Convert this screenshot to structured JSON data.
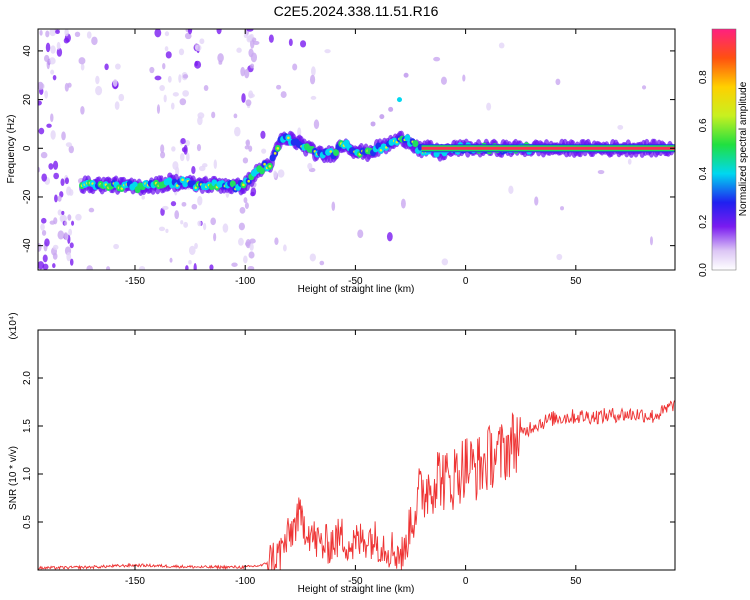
{
  "title": "C2E5.2024.338.11.51.R16",
  "chart_data": [
    {
      "type": "heatmap",
      "panel": "spectrogram",
      "xlabel": "Height of straight line (km)",
      "ylabel": "Frequency (Hz)",
      "xlim": [
        -194,
        95
      ],
      "ylim": [
        -50,
        49
      ],
      "xticks": [
        "-150",
        "-100",
        "-50",
        "0",
        "50"
      ],
      "yticks": [
        "40",
        "20",
        "0",
        "-20",
        "-40"
      ],
      "ridge_x": [
        -174,
        -160,
        -150,
        -140,
        -130,
        -122,
        -115,
        -108,
        -104,
        -100,
        -96,
        -92,
        -88,
        -84,
        -80,
        -75,
        -70,
        -65,
        -60,
        -55,
        -50,
        -45,
        -40,
        -36,
        -32,
        -28,
        -24,
        -20,
        -16,
        -12,
        -8,
        -4,
        0,
        10,
        20,
        40,
        60,
        80,
        94
      ],
      "ridge_y": [
        -15,
        -15,
        -16,
        -15,
        -14,
        -15,
        -15,
        -15,
        -16,
        -15,
        -11,
        -8,
        -6,
        3,
        4,
        2,
        -1,
        -3,
        -2,
        2,
        -1,
        -2,
        0,
        1,
        3,
        4,
        2,
        -1,
        0,
        -2,
        -1,
        0,
        0,
        0,
        0,
        0,
        0,
        0,
        0
      ],
      "branch_x": [
        -42,
        -38,
        -34,
        -30,
        -27
      ],
      "branch_y": [
        10,
        13,
        16,
        20,
        30
      ],
      "colorbar": {
        "label": "Normalized spectral amplitude",
        "ticks": [
          "0.0",
          "0.2",
          "0.4",
          "0.6",
          "0.8"
        ],
        "min": 0,
        "max": 1
      }
    },
    {
      "type": "line",
      "panel": "snr",
      "xlabel": "Height of straight line (km)",
      "ylabel": "SNR (10 * v/v)",
      "scale_label": "(x10⁴)",
      "xlim": [
        -194,
        95
      ],
      "ylim": [
        0,
        2.5
      ],
      "xticks": [
        "-150",
        "-100",
        "-50",
        "0",
        "50"
      ],
      "yticks": [
        "0.5",
        "1.0",
        "1.5",
        "2.0"
      ],
      "color": "#ee3333",
      "x": [
        -194,
        -170,
        -150,
        -120,
        -100,
        -92,
        -85,
        -80,
        -76,
        -72,
        -68,
        -64,
        -60,
        -56,
        -52,
        -48,
        -44,
        -40,
        -36,
        -32,
        -28,
        -24,
        -20,
        -16,
        -12,
        -8,
        -4,
        0,
        4,
        8,
        12,
        16,
        20,
        25,
        30,
        40,
        50,
        60,
        70,
        80,
        85,
        90,
        93,
        95
      ],
      "y": [
        0.02,
        0.03,
        0.05,
        0.03,
        0.03,
        0.05,
        0.15,
        0.35,
        0.55,
        0.45,
        0.3,
        0.25,
        0.3,
        0.35,
        0.25,
        0.3,
        0.35,
        0.3,
        0.25,
        0.2,
        0.15,
        0.6,
        0.8,
        0.9,
        1.0,
        0.9,
        1.0,
        1.1,
        1.05,
        1.1,
        1.2,
        1.2,
        1.3,
        1.4,
        1.5,
        1.58,
        1.6,
        1.6,
        1.62,
        1.62,
        1.6,
        1.65,
        1.7,
        1.75
      ]
    }
  ]
}
